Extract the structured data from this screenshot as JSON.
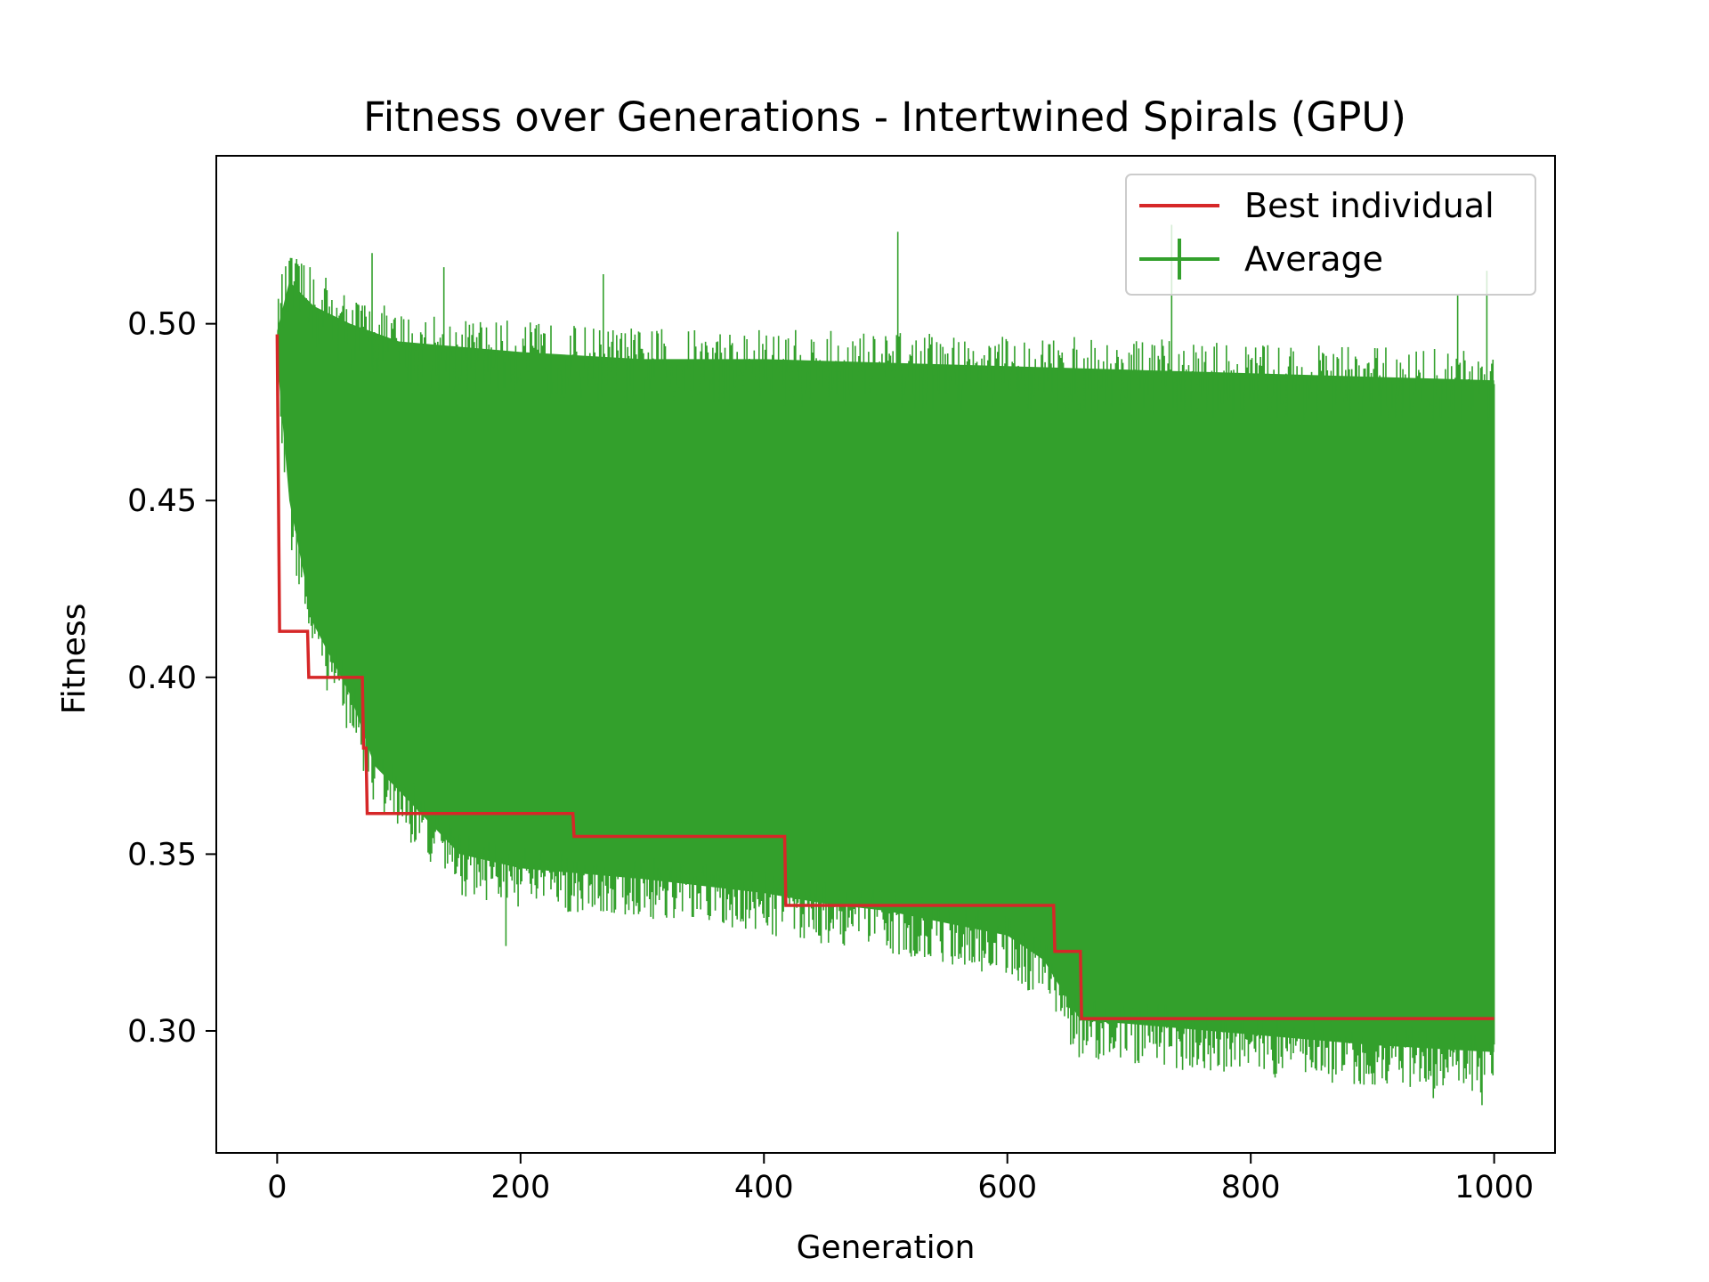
{
  "chart_data": {
    "type": "line",
    "title": "Fitness over Generations - Intertwined Spirals (GPU)",
    "xlabel": "Generation",
    "ylabel": "Fitness",
    "xlim": [
      -50,
      1050
    ],
    "ylim": [
      0.2655,
      0.5475
    ],
    "xticks": [
      0,
      200,
      400,
      600,
      800,
      1000
    ],
    "xtick_labels": [
      "0",
      "200",
      "400",
      "600",
      "800",
      "1000"
    ],
    "yticks": [
      0.3,
      0.35,
      0.4,
      0.45,
      0.5
    ],
    "ytick_labels": [
      "0.30",
      "0.35",
      "0.40",
      "0.45",
      "0.50"
    ],
    "grid": false,
    "legend_position": "top-right",
    "series": [
      {
        "name": "Best individual",
        "color": "#d62728",
        "style": "step",
        "points": [
          [
            0,
            0.497
          ],
          [
            2,
            0.413
          ],
          [
            25,
            0.413
          ],
          [
            26,
            0.4
          ],
          [
            70,
            0.4
          ],
          [
            71,
            0.38
          ],
          [
            73,
            0.38
          ],
          [
            74,
            0.3615
          ],
          [
            243,
            0.3615
          ],
          [
            244,
            0.355
          ],
          [
            417,
            0.355
          ],
          [
            418,
            0.3355
          ],
          [
            638,
            0.3355
          ],
          [
            639,
            0.3225
          ],
          [
            660,
            0.3225
          ],
          [
            661,
            0.3035
          ],
          [
            1000,
            0.3035
          ]
        ]
      },
      {
        "name": "Average",
        "color": "#33a02c",
        "style": "errorbar",
        "upper_envelope": [
          [
            0,
            0.498
          ],
          [
            10,
            0.512
          ],
          [
            30,
            0.505
          ],
          [
            60,
            0.5
          ],
          [
            100,
            0.495
          ],
          [
            200,
            0.492
          ],
          [
            300,
            0.49
          ],
          [
            400,
            0.49
          ],
          [
            500,
            0.489
          ],
          [
            600,
            0.488
          ],
          [
            700,
            0.487
          ],
          [
            800,
            0.486
          ],
          [
            900,
            0.485
          ],
          [
            1000,
            0.484
          ]
        ],
        "lower_envelope": [
          [
            0,
            0.49
          ],
          [
            10,
            0.45
          ],
          [
            30,
            0.415
          ],
          [
            60,
            0.395
          ],
          [
            80,
            0.375
          ],
          [
            100,
            0.368
          ],
          [
            150,
            0.35
          ],
          [
            200,
            0.346
          ],
          [
            300,
            0.343
          ],
          [
            400,
            0.339
          ],
          [
            450,
            0.336
          ],
          [
            500,
            0.334
          ],
          [
            600,
            0.327
          ],
          [
            630,
            0.32
          ],
          [
            660,
            0.303
          ],
          [
            700,
            0.302
          ],
          [
            800,
            0.299
          ],
          [
            900,
            0.296
          ],
          [
            1000,
            0.294
          ]
        ],
        "spikes": [
          [
            4,
            0.514
          ],
          [
            14,
            0.512
          ],
          [
            20,
            0.517
          ],
          [
            27,
            0.516
          ],
          [
            40,
            0.513
          ],
          [
            78,
            0.52
          ],
          [
            137,
            0.516
          ],
          [
            268,
            0.514
          ],
          [
            510,
            0.526
          ],
          [
            735,
            0.528
          ],
          [
            970,
            0.508
          ],
          [
            994,
            0.515
          ]
        ],
        "dips": [
          [
            188,
            0.324
          ],
          [
            445,
            0.327
          ],
          [
            675,
            0.292
          ],
          [
            890,
            0.285
          ],
          [
            950,
            0.281
          ],
          [
            990,
            0.279
          ],
          [
            998,
            0.288
          ]
        ]
      }
    ]
  }
}
